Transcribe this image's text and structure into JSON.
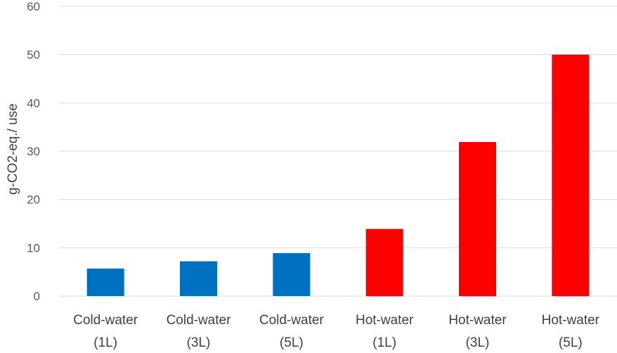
{
  "chart_data": {
    "type": "bar",
    "title": "",
    "xlabel": "",
    "ylabel": "g-CO2-eq./ use",
    "ylim": [
      0,
      60
    ],
    "yticks": [
      0,
      10,
      20,
      30,
      40,
      50,
      60
    ],
    "grid": true,
    "legend": "none",
    "categories": [
      [
        "Cold-water",
        "(1L)"
      ],
      [
        "Cold-water",
        "(3L)"
      ],
      [
        "Cold-water",
        "(5L)"
      ],
      [
        "Hot-water",
        "(1L)"
      ],
      [
        "Hot-water",
        "(3L)"
      ],
      [
        "Hot-water",
        "(5L)"
      ]
    ],
    "values": [
      5.7,
      7.2,
      8.9,
      13.9,
      31.9,
      50.0
    ],
    "colors": [
      "#0070c0",
      "#0070c0",
      "#0070c0",
      "#ff0000",
      "#ff0000",
      "#ff0000"
    ]
  }
}
